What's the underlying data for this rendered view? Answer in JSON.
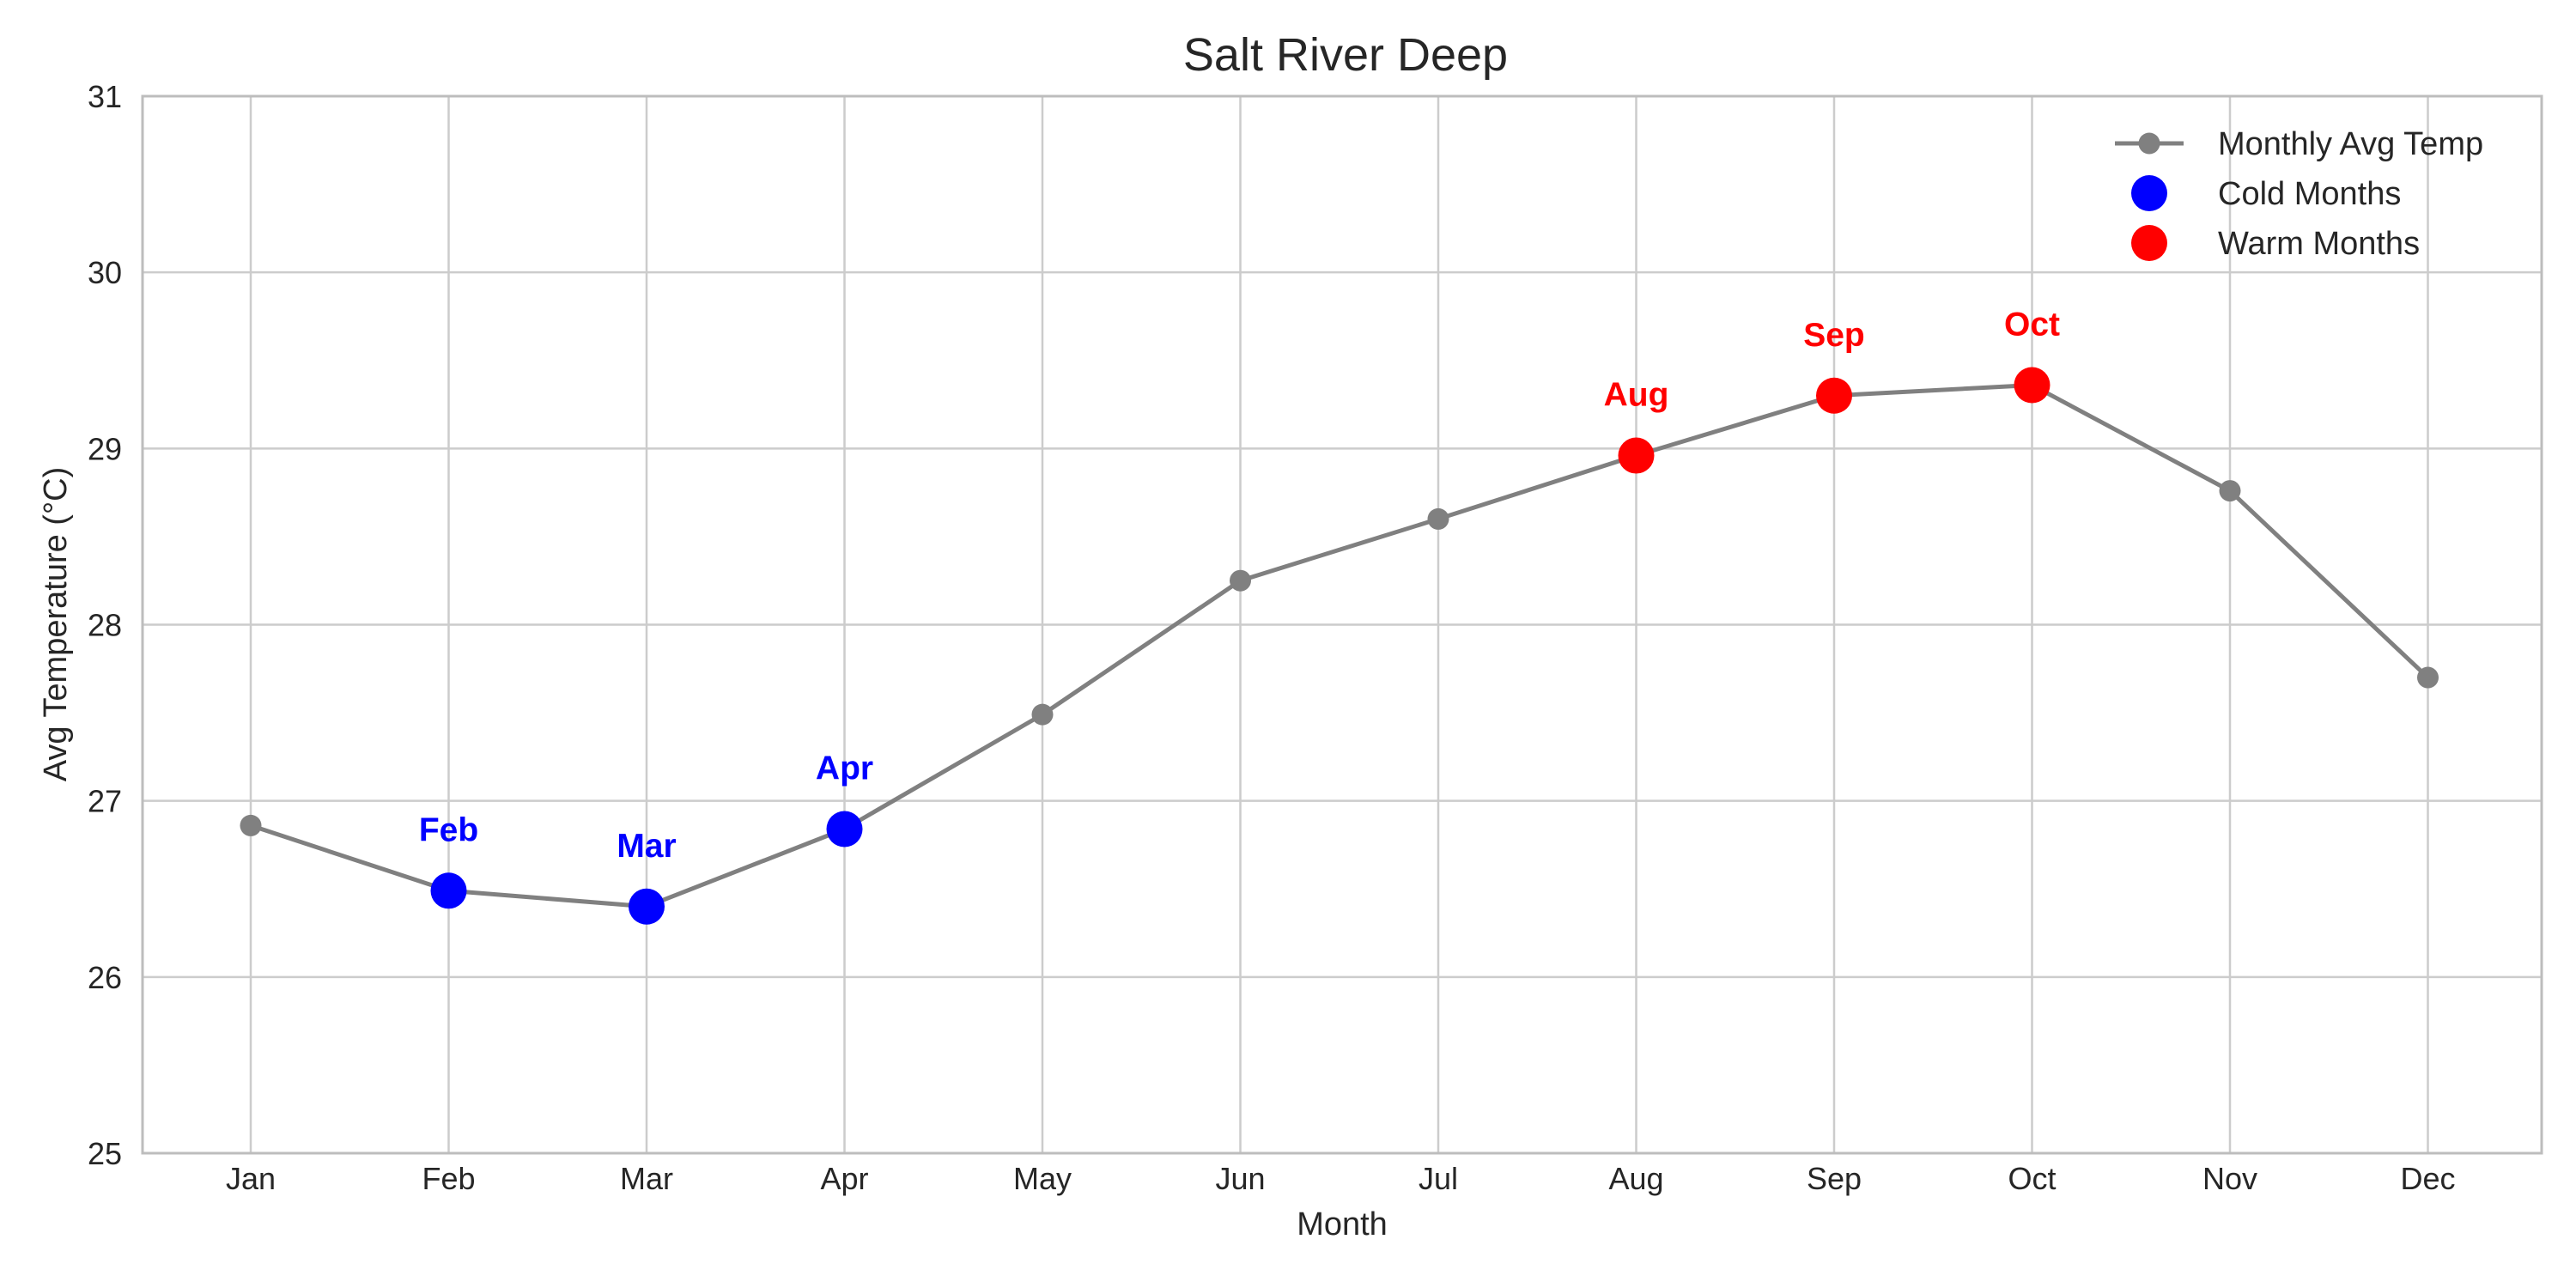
{
  "chart_data": {
    "type": "line",
    "title": "Salt River Deep",
    "xlabel": "Month",
    "ylabel": "Avg Temperature (°C)",
    "ylim": [
      25,
      31
    ],
    "yticks": [
      "25",
      "26",
      "27",
      "28",
      "29",
      "30",
      "31"
    ],
    "grid": true,
    "legend_position": "top-right",
    "categories": [
      "Jan",
      "Feb",
      "Mar",
      "Apr",
      "May",
      "Jun",
      "Jul",
      "Aug",
      "Sep",
      "Oct",
      "Nov",
      "Dec"
    ],
    "series": [
      {
        "name": "Monthly Avg Temp",
        "color": "#808080",
        "values": [
          26.86,
          26.49,
          26.4,
          26.84,
          27.49,
          28.25,
          28.6,
          28.96,
          29.3,
          29.36,
          28.76,
          27.7
        ]
      }
    ],
    "highlights": [
      {
        "name": "Cold Months",
        "color": "#0000ff",
        "months": [
          "Feb",
          "Mar",
          "Apr"
        ]
      },
      {
        "name": "Warm Months",
        "color": "#ff0000",
        "months": [
          "Aug",
          "Sep",
          "Oct"
        ]
      }
    ]
  }
}
